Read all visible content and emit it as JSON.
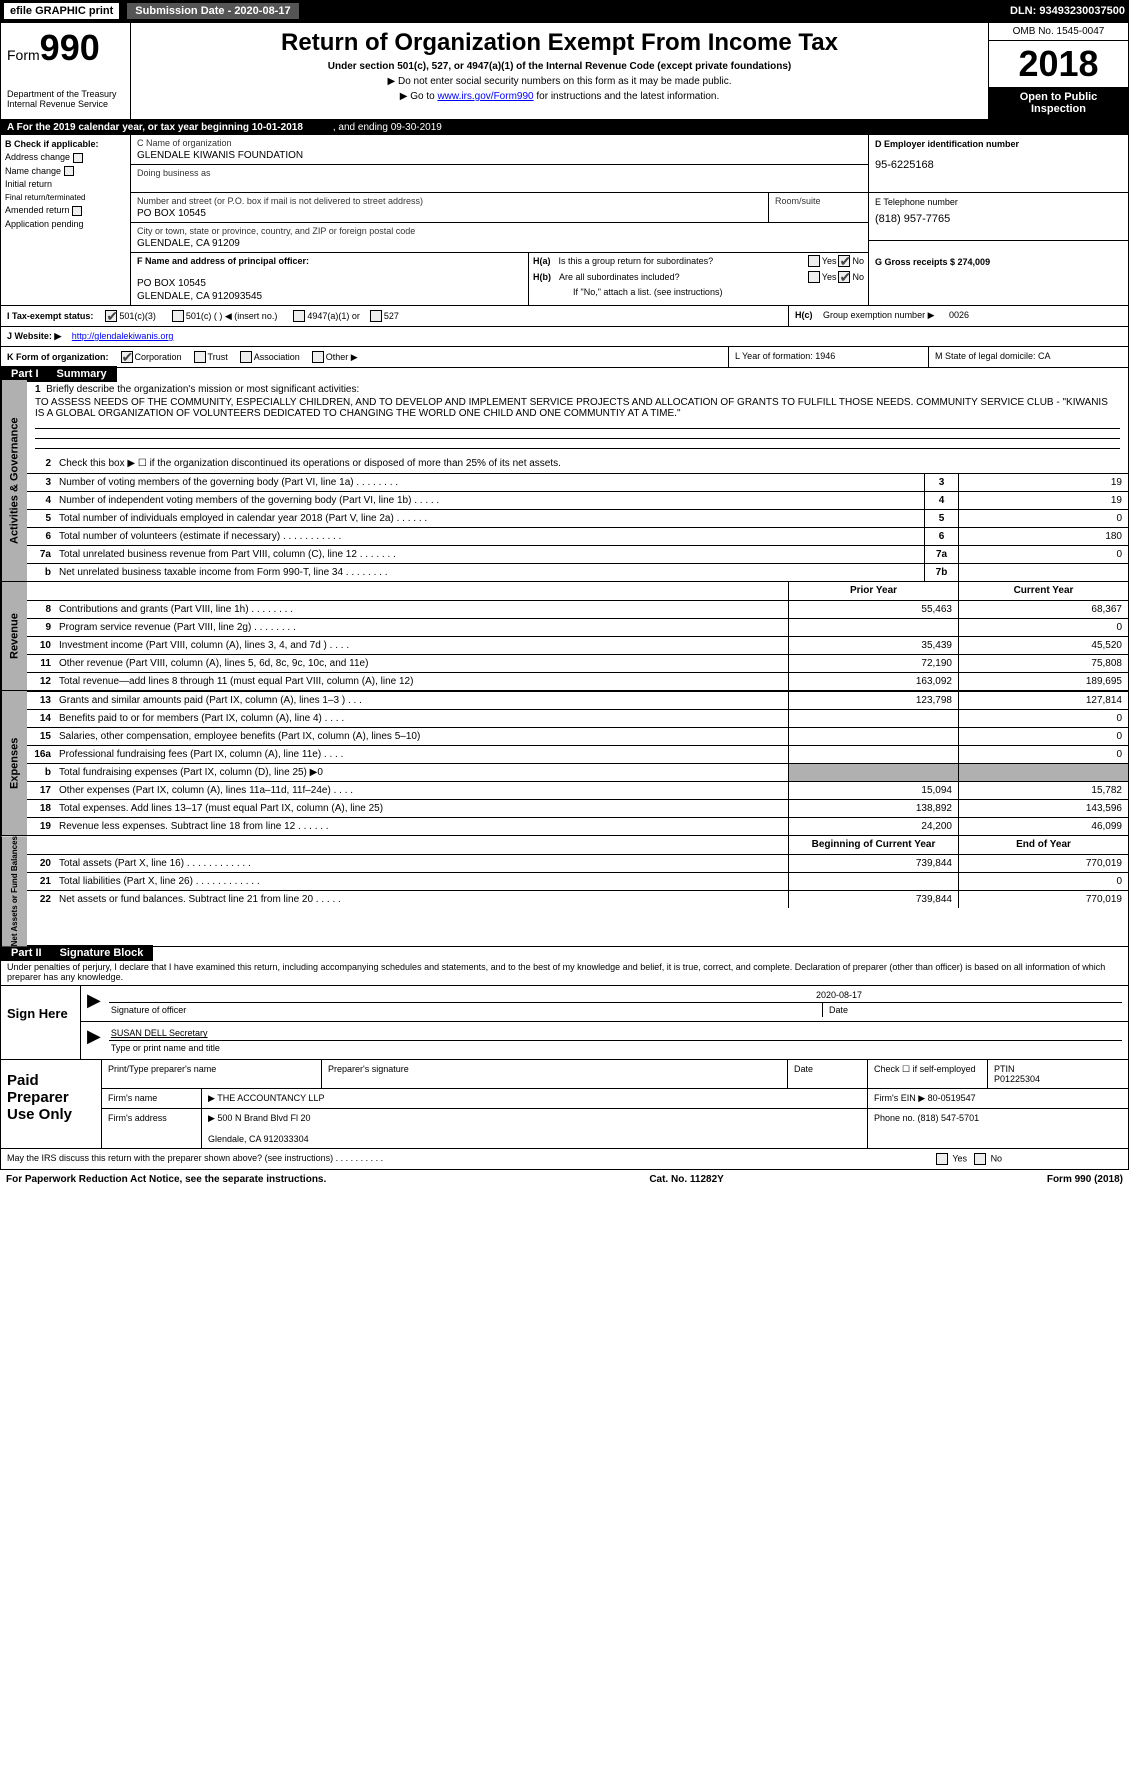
{
  "topbar": {
    "efile": "efile GRAPHIC print",
    "submission_label": "Submission Date - 2020-08-17",
    "dln": "DLN: 93493230037500"
  },
  "header": {
    "form_prefix": "Form",
    "form_num": "990",
    "dept": "Department of the Treasury\nInternal Revenue Service",
    "title": "Return of Organization Exempt From Income Tax",
    "sub1": "Under section 501(c), 527, or 4947(a)(1) of the Internal Revenue Code (except private foundations)",
    "sub2": "▶ Do not enter social security numbers on this form as it may be made public.",
    "sub3_pre": "▶ Go to ",
    "sub3_link": "www.irs.gov/Form990",
    "sub3_post": " for instructions and the latest information.",
    "omb": "OMB No. 1545-0047",
    "year": "2018",
    "open": "Open to Public Inspection"
  },
  "row_a": {
    "text": "A   For the 2019 calendar year, or tax year beginning 10-01-2018",
    "end": ", and ending 09-30-2019"
  },
  "col_b": {
    "hdr": "B Check if applicable:",
    "items": [
      "Address change",
      "Name change",
      "Initial return",
      "Final return/terminated",
      "Amended return",
      "Application pending"
    ]
  },
  "col_c": {
    "name_lbl": "C Name of organization",
    "name": "GLENDALE KIWANIS FOUNDATION",
    "dba_lbl": "Doing business as",
    "addr_lbl": "Number and street (or P.O. box if mail is not delivered to street address)",
    "room_lbl": "Room/suite",
    "addr": "PO BOX 10545",
    "city_lbl": "City or town, state or province, country, and ZIP or foreign postal code",
    "city": "GLENDALE, CA  91209",
    "f_lbl": "F  Name and address of principal officer:",
    "f_addr1": "PO BOX 10545",
    "f_addr2": "GLENDALE, CA  912093545"
  },
  "col_d": {
    "ein_lbl": "D Employer identification number",
    "ein": "95-6225168",
    "tel_lbl": "E Telephone number",
    "tel": "(818) 957-7765",
    "gross_lbl": "G Gross receipts $ 274,009"
  },
  "h": {
    "a_lbl": "H(a)",
    "a_txt": "Is this a group return for subordinates?",
    "b_lbl": "H(b)",
    "b_txt": "Are all subordinates included?",
    "b_note": "If \"No,\" attach a list. (see instructions)",
    "c_lbl": "H(c)",
    "c_txt": "Group exemption number ▶",
    "c_val": "0026"
  },
  "row_i": {
    "lbl": "I    Tax-exempt status:",
    "opts": [
      "501(c)(3)",
      "501(c) (  ) ◀ (insert no.)",
      "4947(a)(1) or",
      "527"
    ]
  },
  "row_j": {
    "lbl": "J   Website: ▶",
    "val": "http://glendalekiwanis.org"
  },
  "row_k": {
    "lbl": "K Form of organization:",
    "opts": [
      "Corporation",
      "Trust",
      "Association",
      "Other ▶"
    ],
    "l": "L Year of formation: 1946",
    "m": "M State of legal domicile: CA"
  },
  "part1": {
    "hdr": "Part I",
    "title": "Summary"
  },
  "mission": {
    "num": "1",
    "lbl": "Briefly describe the organization's mission or most significant activities:",
    "text": "TO ASSESS NEEDS OF THE COMMUNITY, ESPECIALLY CHILDREN, AND TO DEVELOP AND IMPLEMENT SERVICE PROJECTS AND ALLOCATION OF GRANTS TO FULFILL THOSE NEEDS. COMMUNITY SERVICE CLUB - \"KIWANIS IS A GLOBAL ORGANIZATION OF VOLUNTEERS DEDICATED TO CHANGING THE WORLD ONE CHILD AND ONE COMMUNTIY AT A TIME.\""
  },
  "gov_lines": [
    {
      "n": "2",
      "d": "Check this box ▶ ☐ if the organization discontinued its operations or disposed of more than 25% of its net assets.",
      "b": "",
      "v": ""
    },
    {
      "n": "3",
      "d": "Number of voting members of the governing body (Part VI, line 1a)   .    .    .    .    .    .    .    .",
      "b": "3",
      "v": "19"
    },
    {
      "n": "4",
      "d": "Number of independent voting members of the governing body (Part VI, line 1b)  .    .    .    .    .",
      "b": "4",
      "v": "19"
    },
    {
      "n": "5",
      "d": "Total number of individuals employed in calendar year 2018 (Part V, line 2a)  .    .    .    .    .    .",
      "b": "5",
      "v": "0"
    },
    {
      "n": "6",
      "d": "Total number of volunteers (estimate if necessary)   .    .    .    .    .    .    .    .    .    .    .",
      "b": "6",
      "v": "180"
    },
    {
      "n": "7a",
      "d": "Total unrelated business revenue from Part VIII, column (C), line 12  .    .    .    .    .    .    .",
      "b": "7a",
      "v": "0"
    },
    {
      "n": "b",
      "d": "Net unrelated business taxable income from Form 990-T, line 34   .    .    .    .    .    .    .    .",
      "b": "7b",
      "v": ""
    }
  ],
  "yrhdr": {
    "prior": "Prior Year",
    "curr": "Current Year"
  },
  "rev_lines": [
    {
      "n": "8",
      "d": "Contributions and grants (Part VIII, line 1h)   .    .    .    .    .    .    .    .",
      "p": "55,463",
      "c": "68,367"
    },
    {
      "n": "9",
      "d": "Program service revenue (Part VIII, line 2g)   .    .    .    .    .    .    .    .",
      "p": "",
      "c": "0"
    },
    {
      "n": "10",
      "d": "Investment income (Part VIII, column (A), lines 3, 4, and 7d )   .    .    .    .",
      "p": "35,439",
      "c": "45,520"
    },
    {
      "n": "11",
      "d": "Other revenue (Part VIII, column (A), lines 5, 6d, 8c, 9c, 10c, and 11e)",
      "p": "72,190",
      "c": "75,808"
    },
    {
      "n": "12",
      "d": "Total revenue—add lines 8 through 11 (must equal Part VIII, column (A), line 12)",
      "p": "163,092",
      "c": "189,695"
    }
  ],
  "exp_lines": [
    {
      "n": "13",
      "d": "Grants and similar amounts paid (Part IX, column (A), lines 1–3 )  .    .    .",
      "p": "123,798",
      "c": "127,814"
    },
    {
      "n": "14",
      "d": "Benefits paid to or for members (Part IX, column (A), line 4)  .    .    .    .",
      "p": "",
      "c": "0"
    },
    {
      "n": "15",
      "d": "Salaries, other compensation, employee benefits (Part IX, column (A), lines 5–10)",
      "p": "",
      "c": "0"
    },
    {
      "n": "16a",
      "d": "Professional fundraising fees (Part IX, column (A), line 11e)   .    .    .    .",
      "p": "",
      "c": "0"
    },
    {
      "n": "b",
      "d": "Total fundraising expenses (Part IX, column (D), line 25) ▶0",
      "p": "grey",
      "c": "grey"
    },
    {
      "n": "17",
      "d": "Other expenses (Part IX, column (A), lines 11a–11d, 11f–24e)  .    .    .    .",
      "p": "15,094",
      "c": "15,782"
    },
    {
      "n": "18",
      "d": "Total expenses. Add lines 13–17 (must equal Part IX, column (A), line 25)",
      "p": "138,892",
      "c": "143,596"
    },
    {
      "n": "19",
      "d": "Revenue less expenses. Subtract line 18 from line 12  .    .    .    .    .    .",
      "p": "24,200",
      "c": "46,099"
    }
  ],
  "nethdr": {
    "b": "Beginning of Current Year",
    "e": "End of Year"
  },
  "net_lines": [
    {
      "n": "20",
      "d": "Total assets (Part X, line 16)  .    .    .    .    .    .    .    .    .    .    .    .",
      "p": "739,844",
      "c": "770,019"
    },
    {
      "n": "21",
      "d": "Total liabilities (Part X, line 26) .    .    .    .    .    .    .    .    .    .    .    .",
      "p": "",
      "c": "0"
    },
    {
      "n": "22",
      "d": "Net assets or fund balances. Subtract line 21 from line 20  .    .    .    .    .",
      "p": "739,844",
      "c": "770,019"
    }
  ],
  "part2": {
    "hdr": "Part II",
    "title": "Signature Block"
  },
  "sig": {
    "note": "Under penalties of perjury, I declare that I have examined this return, including accompanying schedules and statements, and to the best of my knowledge and belief, it is true, correct, and complete. Declaration of preparer (other than officer) is based on all information of which preparer has any knowledge.",
    "here": "Sign Here",
    "date": "2020-08-17",
    "sig_lbl": "Signature of officer",
    "date_lbl": "Date",
    "name": "SUSAN DELL Secretary",
    "name_lbl": "Type or print name and title"
  },
  "prep": {
    "lbl": "Paid Preparer Use Only",
    "h1": "Print/Type preparer's name",
    "h2": "Preparer's signature",
    "h3": "Date",
    "h4": "Check ☐ if self-employed",
    "h5_lbl": "PTIN",
    "h5": "P01225304",
    "firm_lbl": "Firm's name",
    "firm": "▶ THE ACCOUNTANCY LLP",
    "ein_lbl": "Firm's EIN ▶ 80-0519547",
    "addr_lbl": "Firm's address",
    "addr1": "▶ 500 N Brand Blvd Fl 20",
    "addr2": "Glendale, CA  912033304",
    "phone": "Phone no. (818) 547-5701"
  },
  "discuss": "May the IRS discuss this return with the preparer shown above? (see instructions)   .    .    .    .    .    .    .    .    .    .",
  "footer": {
    "l": "For Paperwork Reduction Act Notice, see the separate instructions.",
    "m": "Cat. No. 11282Y",
    "r": "Form 990 (2018)"
  },
  "vert": {
    "gov": "Activities & Governance",
    "rev": "Revenue",
    "exp": "Expenses",
    "net": "Net Assets or Fund Balances"
  },
  "yn": {
    "yes": "Yes",
    "no": "No"
  }
}
